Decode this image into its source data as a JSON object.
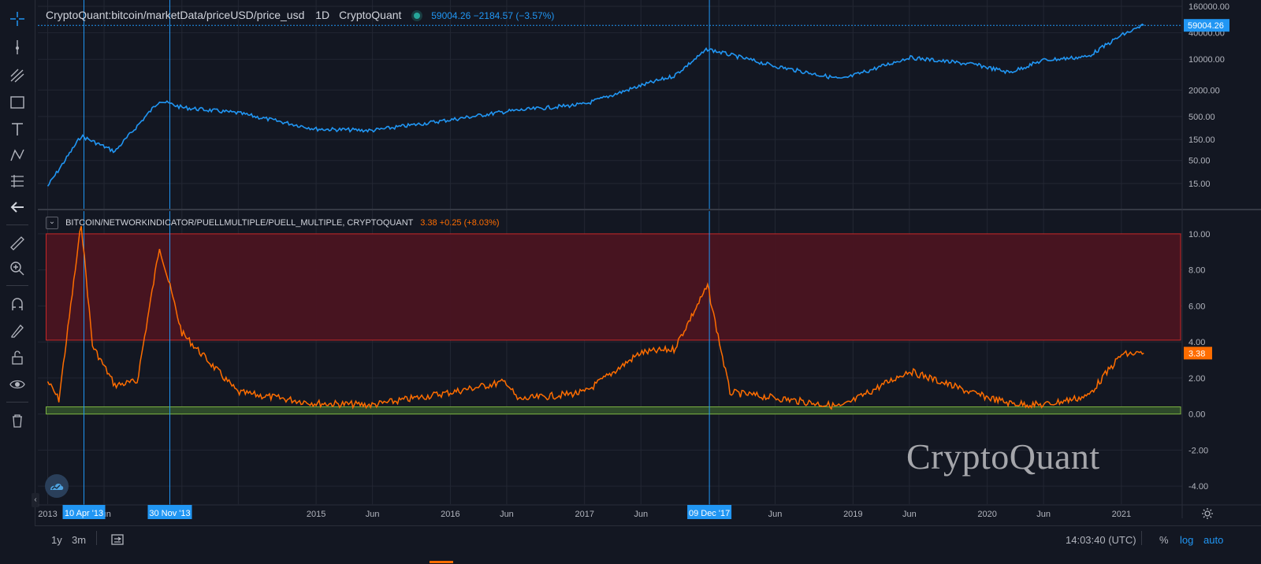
{
  "main_legend": {
    "symbol": "CryptoQuant:bitcoin/marketData/priceUSD/price_usd",
    "interval": "1D",
    "source": "CryptoQuant",
    "values": "59004.26  −2184.57 (−3.57%)"
  },
  "sub_legend": {
    "caret": "⌄",
    "title": "BITCOIN/NETWORKINDICATOR/PUELLMULTIPLE/PUELL_MULTIPLE, CRYPTOQUANT",
    "values": "3.38  +0.25 (+8.03%)"
  },
  "watermark": "CryptoQuant",
  "bottom_bar": {
    "range_1y": "1y",
    "range_3m": "3m",
    "time": "14:03:40 (UTC)",
    "percent": "%",
    "log": "log",
    "auto": "auto"
  },
  "toolbar": {
    "icons": [
      "crosshair-icon",
      "trend-line-icon",
      "fib-icon",
      "rectangle-icon",
      "text-icon",
      "pattern-icon",
      "forecast-icon",
      "back-arrow-icon",
      "ruler-icon",
      "zoom-in-icon",
      "magnet-icon",
      "lock-pencil-icon",
      "unlock-icon",
      "eye-icon",
      "trash-icon"
    ]
  },
  "colors": {
    "price_line": "#2196f3",
    "puell_line": "#ff6d00",
    "red_zone": "#4a1421",
    "green_zone": "#2e4a2a",
    "background": "#131722"
  },
  "chart_data": [
    {
      "type": "line",
      "title": "CryptoQuant:bitcoin/marketData/priceUSD/price_usd",
      "yscale": "log",
      "y_ticks": [
        "15.00",
        "50.00",
        "150.00",
        "500.00",
        "2000.00",
        "10000.00",
        "40000.00",
        "160000.00"
      ],
      "last_value_label": "59004.26",
      "x": [
        "2013-01",
        "2013-04",
        "2013-07",
        "2013-11",
        "2014-01",
        "2014-06",
        "2015-01",
        "2015-06",
        "2016-01",
        "2016-06",
        "2017-01",
        "2017-06",
        "2017-09",
        "2017-12",
        "2018-06",
        "2018-12",
        "2019-06",
        "2019-12",
        "2020-03",
        "2020-06",
        "2020-10",
        "2021-01",
        "2021-03"
      ],
      "values": [
        13,
        180,
        80,
        1150,
        800,
        600,
        260,
        240,
        420,
        650,
        950,
        2500,
        4200,
        17000,
        7000,
        3500,
        11000,
        7500,
        5000,
        9500,
        11500,
        35000,
        59004.26
      ],
      "series": [
        {
          "name": "price_usd",
          "color": "#2196f3"
        }
      ],
      "x_markers": [
        "10 Apr '13",
        "30 Nov '13",
        "09 Dec '17"
      ]
    },
    {
      "type": "line",
      "title": "BITCOIN/NETWORKINDICATOR/PUELLMULTIPLE/PUELL_MULTIPLE, CRYPTOQUANT",
      "y_ticks": [
        "10.00",
        "8.00",
        "6.00",
        "4.00",
        "2.00",
        "0.00",
        "-2.00",
        "-4.00"
      ],
      "ylim": [
        -5,
        11
      ],
      "last_value_label": "3.38",
      "bands": [
        {
          "from": 4.1,
          "to": 10,
          "color": "red"
        },
        {
          "from": 0,
          "to": 0.4,
          "color": "green"
        }
      ],
      "x": [
        "2013-01",
        "2013-02",
        "2013-04",
        "2013-05",
        "2013-07",
        "2013-09",
        "2013-11",
        "2014-01",
        "2014-06",
        "2015-01",
        "2015-06",
        "2016-01",
        "2016-06",
        "2016-07",
        "2017-01",
        "2017-06",
        "2017-09",
        "2017-12",
        "2018-02",
        "2018-06",
        "2018-12",
        "2019-06",
        "2019-12",
        "2020-03",
        "2020-06",
        "2020-10",
        "2021-01",
        "2021-03"
      ],
      "values": [
        1.8,
        0.8,
        10.6,
        3.8,
        1.6,
        1.8,
        9.3,
        4.5,
        1.2,
        0.6,
        0.5,
        1.2,
        1.8,
        0.8,
        1.2,
        3.4,
        3.6,
        7.1,
        1.2,
        0.9,
        0.4,
        2.4,
        1.1,
        0.6,
        0.5,
        1.0,
        3.3,
        3.38
      ],
      "series": [
        {
          "name": "puell_multiple",
          "color": "#ff6d00"
        }
      ]
    }
  ],
  "x_axis": {
    "labels": [
      "2013",
      "Jun",
      "2015",
      "Jun",
      "2016",
      "Jun",
      "2017",
      "Jun",
      "Jun",
      "2019",
      "Jun",
      "2020",
      "Jun",
      "2021"
    ],
    "markers": [
      "10 Apr '13",
      "30 Nov '13",
      "09 Dec '17"
    ]
  }
}
